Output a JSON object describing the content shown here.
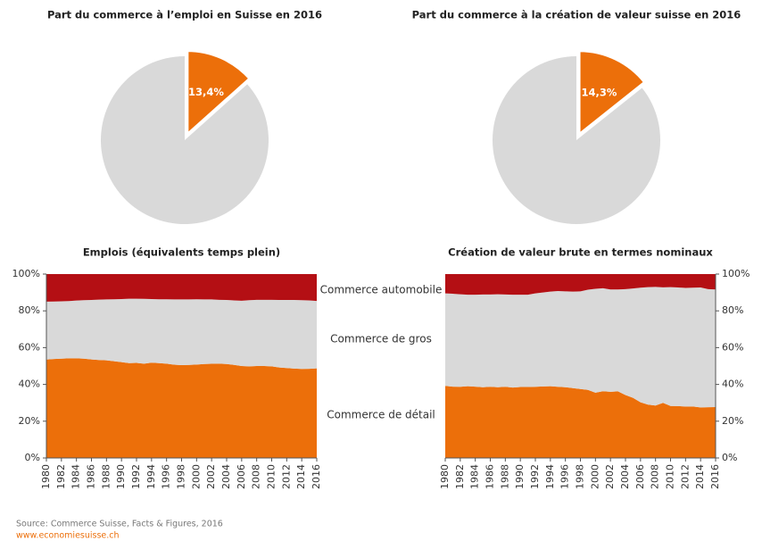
{
  "chart_data": [
    {
      "type": "pie",
      "title": "Part du commerce à l’emploi en Suisse en 2016",
      "values": [
        13.4,
        86.6
      ],
      "value_labels": [
        "13,4%",
        null
      ],
      "colors": [
        "#ec6f0a",
        "#d9d9d9"
      ],
      "explode": [
        true,
        false
      ]
    },
    {
      "type": "pie",
      "title": "Part du commerce à la création de valeur suisse en 2016",
      "values": [
        14.3,
        85.7
      ],
      "value_labels": [
        "14,3%",
        null
      ],
      "colors": [
        "#ec6f0a",
        "#d9d9d9"
      ],
      "explode": [
        true,
        false
      ]
    },
    {
      "type": "stacked_area",
      "title": "Emplois (équivalents temps plein)",
      "y_axis_side": "left",
      "x": [
        1980,
        1981,
        1982,
        1983,
        1984,
        1985,
        1986,
        1987,
        1988,
        1989,
        1990,
        1991,
        1992,
        1993,
        1994,
        1995,
        1996,
        1997,
        1998,
        1999,
        2000,
        2001,
        2002,
        2003,
        2004,
        2005,
        2006,
        2007,
        2008,
        2009,
        2010,
        2011,
        2012,
        2013,
        2014,
        2015,
        2016
      ],
      "xlim": [
        1980,
        2016
      ],
      "xticks": [
        1980,
        1982,
        1984,
        1986,
        1988,
        1990,
        1992,
        1994,
        1996,
        1998,
        2000,
        2002,
        2004,
        2006,
        2008,
        2010,
        2012,
        2014,
        2016
      ],
      "ylim": [
        0,
        100
      ],
      "yticks": [
        {
          "value": 0,
          "label": "0%"
        },
        {
          "value": 20,
          "label": "20%"
        },
        {
          "value": 40,
          "label": "40%"
        },
        {
          "value": 60,
          "label": "60%"
        },
        {
          "value": 80,
          "label": "80%"
        },
        {
          "value": 100,
          "label": "100%"
        }
      ],
      "series": [
        {
          "name": "Commerce de détail",
          "color": "#ec6f0a",
          "values": [
            53.5,
            53.8,
            54.0,
            54.2,
            54.2,
            54.0,
            53.6,
            53.3,
            53.1,
            52.6,
            52.1,
            51.6,
            51.7,
            51.3,
            51.8,
            51.6,
            51.3,
            50.7,
            50.5,
            50.6,
            50.8,
            51.1,
            51.2,
            51.3,
            51.1,
            50.6,
            50.0,
            49.8,
            50.0,
            50.0,
            49.8,
            49.2,
            48.9,
            48.6,
            48.4,
            48.5,
            48.7
          ]
        },
        {
          "name": "Commerce de gros",
          "color": "#d9d9d9",
          "values": [
            31.5,
            31.3,
            31.2,
            31.1,
            31.4,
            31.8,
            32.3,
            32.8,
            33.1,
            33.7,
            34.3,
            35.0,
            34.9,
            35.2,
            34.6,
            34.7,
            35.0,
            35.5,
            35.7,
            35.6,
            35.5,
            35.1,
            35.0,
            34.7,
            34.8,
            35.1,
            35.5,
            36.0,
            36.0,
            36.0,
            36.2,
            36.7,
            37.0,
            37.3,
            37.4,
            37.2,
            36.7
          ]
        },
        {
          "name": "Commerce automobile",
          "color": "#b40f14",
          "values": [
            15.0,
            14.9,
            14.8,
            14.7,
            14.4,
            14.2,
            14.1,
            13.9,
            13.8,
            13.7,
            13.6,
            13.4,
            13.4,
            13.5,
            13.6,
            13.7,
            13.7,
            13.8,
            13.8,
            13.8,
            13.7,
            13.8,
            13.8,
            14.0,
            14.1,
            14.3,
            14.5,
            14.2,
            14.0,
            14.0,
            14.0,
            14.1,
            14.1,
            14.1,
            14.2,
            14.3,
            14.6
          ]
        }
      ]
    },
    {
      "type": "stacked_area",
      "title": "Création de valeur brute en termes nominaux",
      "y_axis_side": "right",
      "x": [
        1980,
        1981,
        1982,
        1983,
        1984,
        1985,
        1986,
        1987,
        1988,
        1989,
        1990,
        1991,
        1992,
        1993,
        1994,
        1995,
        1996,
        1997,
        1998,
        1999,
        2000,
        2001,
        2002,
        2003,
        2004,
        2005,
        2006,
        2007,
        2008,
        2009,
        2010,
        2011,
        2012,
        2013,
        2014,
        2015,
        2016
      ],
      "xlim": [
        1980,
        2016
      ],
      "xticks": [
        1980,
        1982,
        1984,
        1986,
        1988,
        1990,
        1992,
        1994,
        1996,
        1998,
        2000,
        2002,
        2004,
        2006,
        2008,
        2010,
        2012,
        2014,
        2016
      ],
      "ylim": [
        0,
        100
      ],
      "yticks": [
        {
          "value": 0,
          "label": "0%"
        },
        {
          "value": 20,
          "label": "20%"
        },
        {
          "value": 40,
          "label": "40%"
        },
        {
          "value": 60,
          "label": "60%"
        },
        {
          "value": 80,
          "label": "80%"
        },
        {
          "value": 100,
          "label": "100%"
        }
      ],
      "series": [
        {
          "name": "Commerce de détail",
          "color": "#ec6f0a",
          "values": [
            39.2,
            38.8,
            38.7,
            39.0,
            38.8,
            38.5,
            38.7,
            38.5,
            38.7,
            38.3,
            38.6,
            38.6,
            38.7,
            38.9,
            39.0,
            38.7,
            38.5,
            38.0,
            37.5,
            37.0,
            35.5,
            36.3,
            36.0,
            36.2,
            34.2,
            32.7,
            30.3,
            29.0,
            28.5,
            30.0,
            28.3,
            28.2,
            28.0,
            28.0,
            27.5,
            27.6,
            27.7
          ]
        },
        {
          "name": "Commerce de gros",
          "color": "#d9d9d9",
          "values": [
            50.3,
            50.5,
            50.3,
            49.8,
            50.0,
            50.4,
            50.2,
            50.5,
            50.2,
            50.5,
            50.2,
            50.2,
            50.8,
            51.1,
            51.5,
            52.1,
            52.1,
            52.5,
            53.1,
            54.5,
            56.5,
            56.0,
            55.6,
            55.4,
            57.6,
            59.5,
            62.3,
            63.9,
            64.5,
            62.8,
            64.6,
            64.5,
            64.5,
            64.6,
            65.2,
            64.2,
            63.9
          ]
        },
        {
          "name": "Commerce automobile",
          "color": "#b40f14",
          "values": [
            10.5,
            10.7,
            11.0,
            11.2,
            11.2,
            11.1,
            11.1,
            11.0,
            11.1,
            11.2,
            11.2,
            11.2,
            10.5,
            10.0,
            9.5,
            9.2,
            9.4,
            9.5,
            9.4,
            8.5,
            8.0,
            7.7,
            8.4,
            8.4,
            8.2,
            7.8,
            7.4,
            7.1,
            7.0,
            7.2,
            7.1,
            7.3,
            7.5,
            7.4,
            7.3,
            8.2,
            8.4
          ]
        }
      ]
    }
  ],
  "footer": {
    "source": "Source: Commerce Suisse, Facts & Figures, 2016",
    "url": "www.economiesuisse.ch"
  }
}
